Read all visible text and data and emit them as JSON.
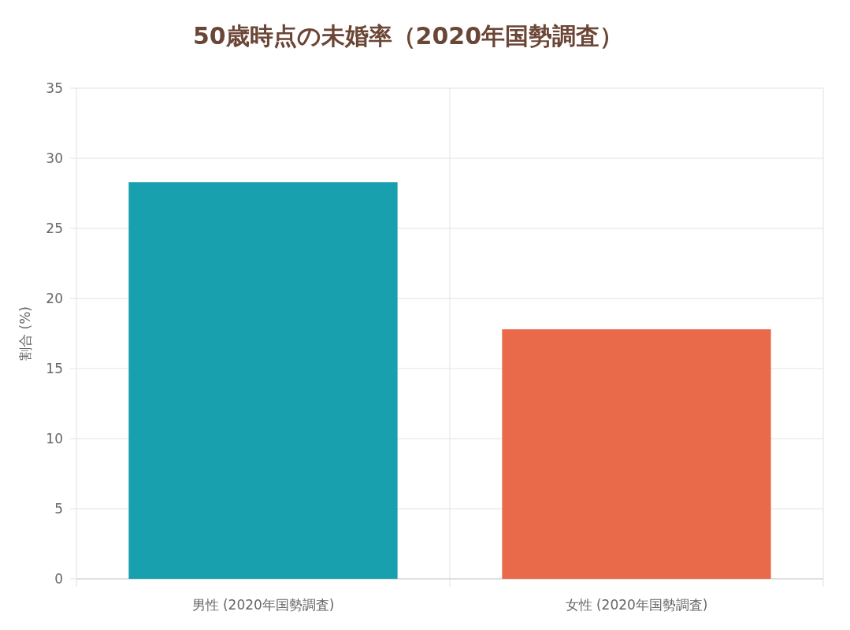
{
  "chart_data": {
    "type": "bar",
    "title": "50歳時点の未婚率（2020年国勢調査）",
    "ylabel": "割合 (%)",
    "categories": [
      "男性 (2020年国勢調査)",
      "女性 (2020年国勢調査)"
    ],
    "values": [
      28.3,
      17.8
    ],
    "colors": [
      "#19a0af",
      "#e9694b"
    ],
    "ylim": [
      0,
      35
    ],
    "yticks": [
      0,
      5,
      10,
      15,
      20,
      25,
      30,
      35
    ],
    "grid": true
  }
}
